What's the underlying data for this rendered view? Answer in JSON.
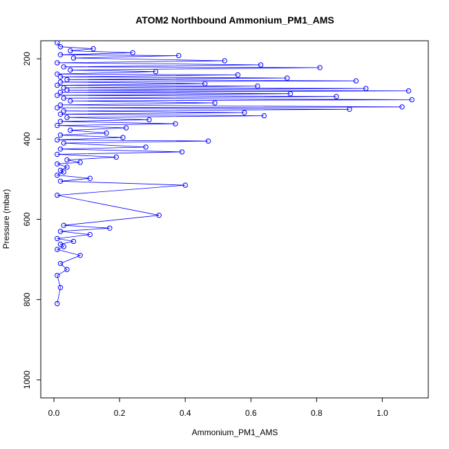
{
  "chart_data": {
    "type": "line",
    "title": "ATOM2 Northbound Ammonium_PM1_AMS",
    "xlabel": "Ammonium_PM1_AMS",
    "ylabel": "Pressure (mbar)",
    "xlim": [
      -0.04,
      1.14
    ],
    "ylim": [
      1045,
      155
    ],
    "y_reversed": true,
    "x_ticks": [
      0.0,
      0.2,
      0.4,
      0.6,
      0.8,
      1.0
    ],
    "y_ticks": [
      200,
      400,
      600,
      800,
      1000
    ],
    "x_tick_labels": [
      "0.0",
      "0.2",
      "0.4",
      "0.6",
      "0.8",
      "1.0"
    ],
    "y_tick_labels": [
      "200",
      "400",
      "600",
      "800",
      "1000"
    ],
    "grid": false,
    "marker": "open-circle",
    "series": [
      {
        "color": "#0000ff",
        "x": [
          0.01,
          0.02,
          0.12,
          0.05,
          0.24,
          0.02,
          0.38,
          0.06,
          0.52,
          0.01,
          0.63,
          0.03,
          0.81,
          0.05,
          0.31,
          0.01,
          0.56,
          0.02,
          0.71,
          0.04,
          0.92,
          0.02,
          0.46,
          0.01,
          0.62,
          0.03,
          0.95,
          0.04,
          1.08,
          0.02,
          0.72,
          0.01,
          0.86,
          0.03,
          1.09,
          0.05,
          0.49,
          0.02,
          1.06,
          0.01,
          0.9,
          0.03,
          0.58,
          0.02,
          0.64,
          0.04,
          0.29,
          0.02,
          0.37,
          0.01,
          0.22,
          0.05,
          0.16,
          0.02,
          0.21,
          0.01,
          0.47,
          0.03,
          0.28,
          0.02,
          0.39,
          0.01,
          0.19,
          0.04,
          0.08,
          0.01,
          0.04,
          0.02,
          0.03,
          0.01,
          0.11,
          0.02,
          0.4,
          0.01,
          0.32,
          0.03,
          0.17,
          0.02,
          0.11,
          0.01,
          0.06,
          0.02,
          0.03,
          0.01,
          0.08,
          0.02,
          0.04,
          0.01,
          0.02,
          0.01
        ],
        "y": [
          160,
          170,
          175,
          180,
          185,
          190,
          192,
          198,
          205,
          210,
          215,
          220,
          222,
          228,
          232,
          238,
          240,
          245,
          248,
          252,
          255,
          258,
          262,
          266,
          268,
          272,
          274,
          278,
          280,
          283,
          287,
          291,
          294,
          298,
          302,
          305,
          310,
          315,
          320,
          322,
          326,
          330,
          334,
          338,
          342,
          346,
          352,
          356,
          362,
          366,
          372,
          378,
          385,
          390,
          396,
          402,
          405,
          410,
          420,
          425,
          432,
          438,
          445,
          452,
          458,
          462,
          470,
          478,
          482,
          490,
          498,
          505,
          515,
          540,
          590,
          615,
          622,
          630,
          638,
          648,
          655,
          662,
          668,
          675,
          690,
          710,
          725,
          740,
          770,
          810
        ]
      }
    ]
  }
}
